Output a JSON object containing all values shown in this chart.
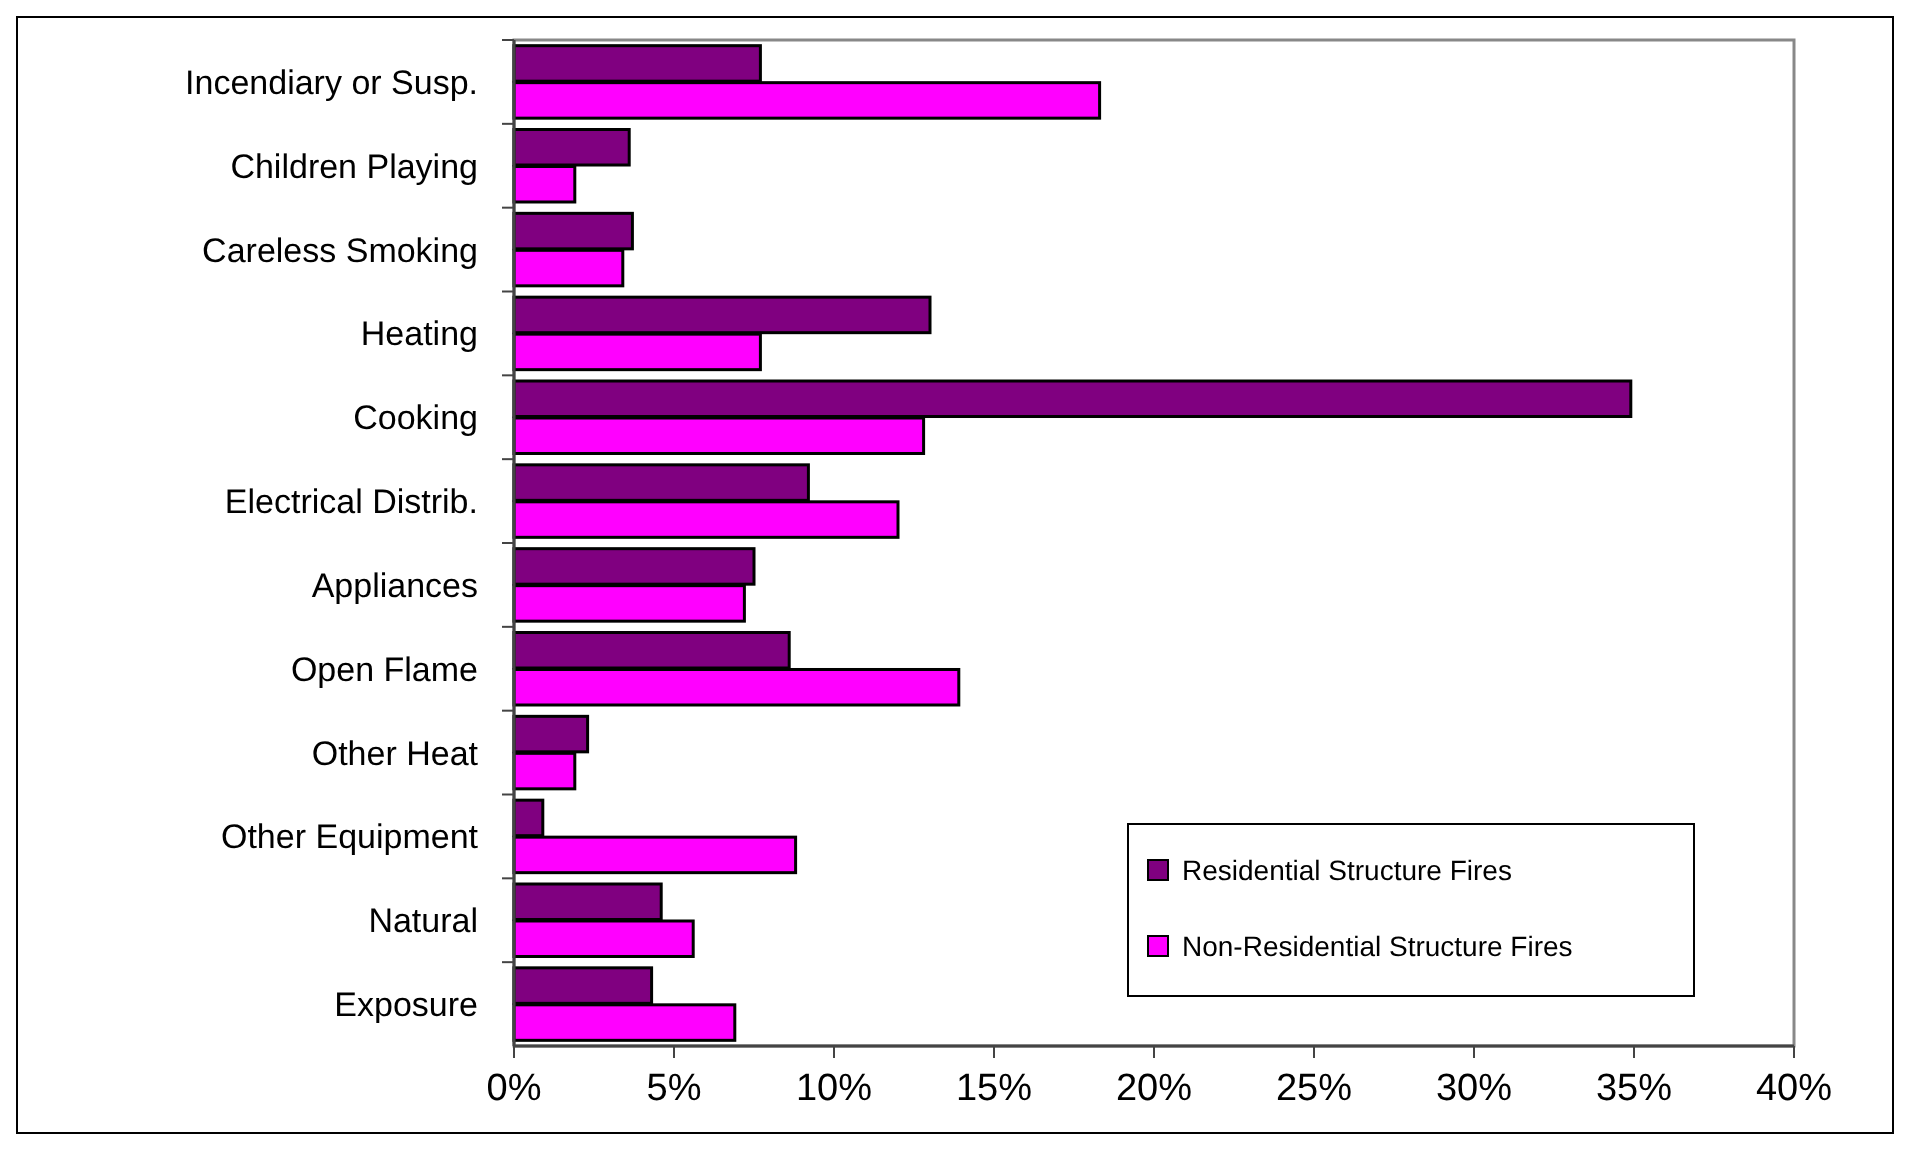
{
  "chart_data": {
    "type": "bar",
    "orientation": "horizontal",
    "categories": [
      "Incendiary or Susp.",
      "Children Playing",
      "Careless Smoking",
      "Heating",
      "Cooking",
      "Electrical Distrib.",
      "Appliances",
      "Open Flame",
      "Other Heat",
      "Other Equipment",
      "Natural",
      "Exposure"
    ],
    "series": [
      {
        "name": "Residential Structure Fires",
        "color": "#800080",
        "values": [
          7.7,
          3.6,
          3.7,
          13.0,
          34.9,
          9.2,
          7.5,
          8.6,
          2.3,
          0.9,
          4.6,
          4.3
        ]
      },
      {
        "name": "Non-Residential Structure Fires",
        "color": "#ff00ff",
        "values": [
          18.3,
          1.9,
          3.4,
          7.7,
          12.8,
          12.0,
          7.2,
          13.9,
          1.9,
          8.8,
          5.6,
          6.9
        ]
      }
    ],
    "xlim": [
      0,
      40
    ],
    "xticks": [
      {
        "value": 0,
        "label": "0%"
      },
      {
        "value": 5,
        "label": "5%"
      },
      {
        "value": 10,
        "label": "10%"
      },
      {
        "value": 15,
        "label": "15%"
      },
      {
        "value": 20,
        "label": "20%"
      },
      {
        "value": 25,
        "label": "25%"
      },
      {
        "value": 30,
        "label": "30%"
      },
      {
        "value": 35,
        "label": "35%"
      },
      {
        "value": 40,
        "label": "40%"
      }
    ],
    "grid": false,
    "legend": "bottom right"
  }
}
